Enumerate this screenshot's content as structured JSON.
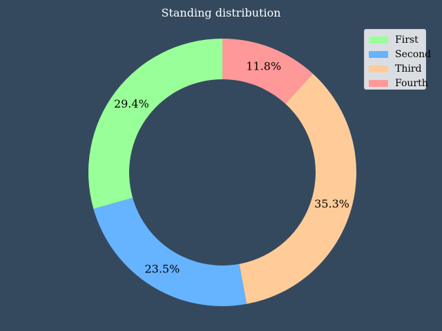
{
  "chart_data": {
    "type": "pie",
    "variant": "donut",
    "title": "Standing distribution",
    "categories": [
      "First",
      "Second",
      "Third",
      "Fourth"
    ],
    "values": [
      29.4,
      23.5,
      35.3,
      11.8
    ],
    "labels": [
      "29.4%",
      "23.5%",
      "35.3%",
      "11.8%"
    ],
    "colors": [
      "#99ff99",
      "#66b3ff",
      "#ffcc99",
      "#ff9999"
    ],
    "start_angle_deg": 90,
    "legend_placement": "top-right",
    "background": "#34495e"
  }
}
